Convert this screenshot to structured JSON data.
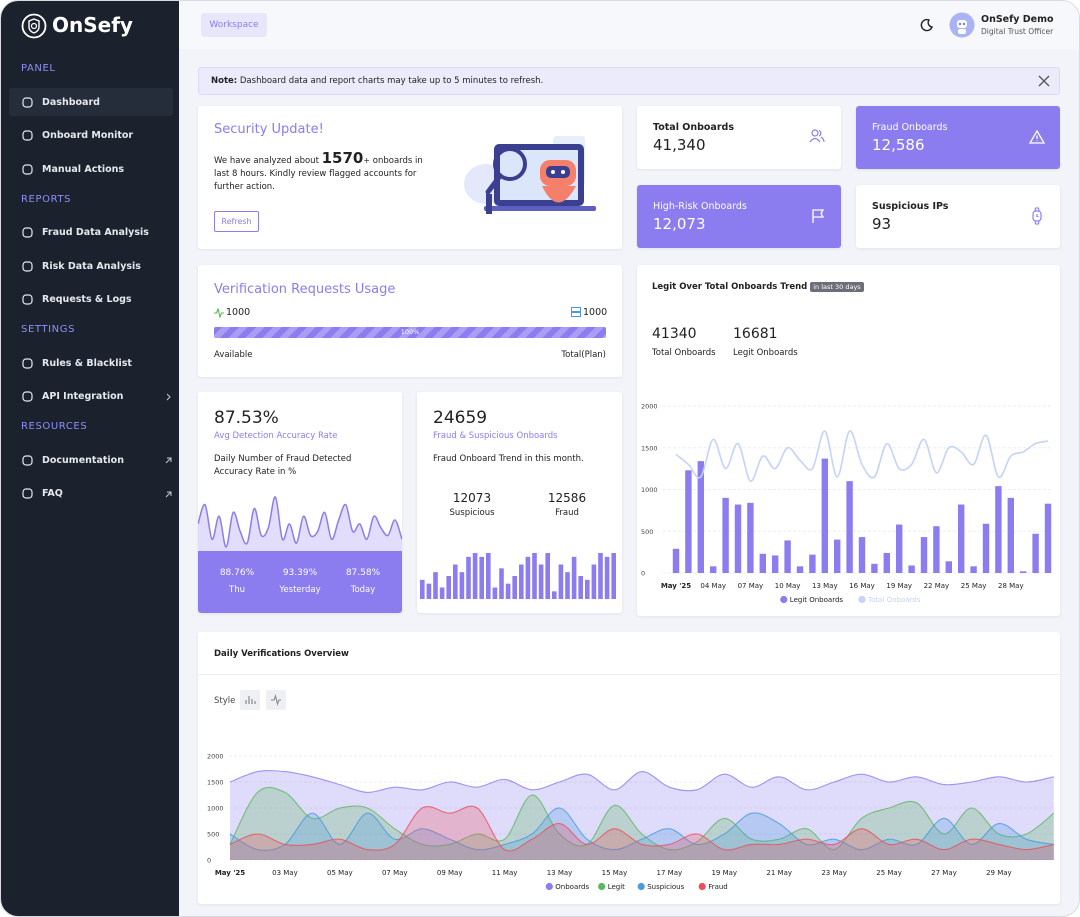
{
  "brand": "OnSefy",
  "sidebar": [
    {
      "heading": "PANEL",
      "items": [
        "Dashboard",
        "Onboard Monitor",
        "Manual Actions"
      ]
    },
    {
      "heading": "REPORTS",
      "items": [
        "Fraud Data Analysis",
        "Risk Data Analysis",
        "Requests & Logs"
      ]
    },
    {
      "heading": "SETTINGS",
      "items": [
        "Rules & Blacklist",
        "API Integration"
      ]
    },
    {
      "heading": "RESOURCES",
      "items": [
        "Documentation",
        "FAQ"
      ]
    }
  ],
  "topbar": {
    "workspace": "Workspace",
    "user_name": "OnSefy Demo",
    "user_role": "Digital Trust Officer"
  },
  "note": {
    "label": "Note:",
    "text": "Dashboard data and report charts may take up to 5 minutes to refresh."
  },
  "security": {
    "title": "Security Update!",
    "text_before": "We have analyzed about",
    "count": "1570",
    "count_suffix": "+",
    "text_after": "onboards in last 8 hours. Kindly review flagged accounts for further action.",
    "button": "Refresh"
  },
  "stats": [
    {
      "label": "Total Onboards",
      "value": "41,340"
    },
    {
      "label": "Fraud Onboards",
      "value": "12,586"
    },
    {
      "label": "High-Risk Onboards",
      "value": "12,073"
    },
    {
      "label": "Suspicious IPs",
      "value": "93"
    }
  ],
  "usage": {
    "title": "Verification Requests Usage",
    "used": 1000,
    "plan": 1000,
    "progress_label": "100%",
    "available": "Available",
    "total": "Total(Plan)"
  },
  "accuracy": {
    "value": "87.53%",
    "label": "Avg Detection Accuracy Rate",
    "description": "Daily Number of Fraud Detected Accuracy Rate in %",
    "sparkline": [
      60,
      85,
      40,
      70,
      30,
      75,
      50,
      35,
      80,
      45,
      55,
      95,
      40,
      60,
      35,
      70,
      45,
      50,
      75,
      40,
      65,
      85,
      50,
      60,
      40,
      70,
      55,
      45,
      65,
      40
    ],
    "days": [
      {
        "value": "88.76%",
        "label": "Thu"
      },
      {
        "value": "93.39%",
        "label": "Yesterday"
      },
      {
        "value": "87.58%",
        "label": "Today"
      }
    ]
  },
  "fraud": {
    "value": 24659,
    "label": "Fraud & Suspicious Onboards",
    "description": "Fraud Onboard Trend in this month.",
    "breakdown": [
      {
        "value": 12073,
        "label": "Suspicious"
      },
      {
        "value": 12586,
        "label": "Fraud"
      }
    ],
    "bars": [
      25,
      20,
      35,
      15,
      30,
      45,
      35,
      55,
      60,
      55,
      60,
      15,
      40,
      20,
      30,
      45,
      55,
      60,
      45,
      60,
      10,
      45,
      35,
      55,
      30,
      25,
      45,
      60,
      55,
      60
    ]
  },
  "trend_chart": {
    "type": "combo",
    "title": "Legit Over Total Onboards Trend",
    "badge": "in last 30 days",
    "summary": [
      {
        "value": 41340,
        "label": "Total Onboards"
      },
      {
        "value": 16681,
        "label": "Legit Onboards"
      }
    ],
    "categories": [
      "May '25",
      null,
      null,
      "04 May",
      null,
      null,
      "07 May",
      null,
      null,
      "10 May",
      null,
      null,
      "13 May",
      null,
      null,
      "16 May",
      null,
      null,
      "19 May",
      null,
      null,
      "22 May",
      null,
      null,
      "25 May",
      null,
      null,
      "28 May",
      null,
      null,
      null
    ],
    "ylim": [
      0,
      2000
    ],
    "yticks": [
      0,
      500,
      1000,
      1500,
      2000
    ],
    "grid": true,
    "series": [
      {
        "name": "Legit Onboards",
        "type": "bar",
        "color": "#8b7cf0",
        "values": [
          290,
          1230,
          1340,
          80,
          900,
          820,
          840,
          230,
          210,
          390,
          80,
          220,
          1370,
          400,
          1100,
          430,
          110,
          240,
          580,
          90,
          430,
          560,
          140,
          820,
          80,
          590,
          1040,
          900,
          20,
          470,
          830
        ]
      },
      {
        "name": "Total Onboards",
        "type": "line",
        "color": "#c3d4f7",
        "values": [
          1420,
          1300,
          1150,
          1600,
          1250,
          1550,
          1100,
          1400,
          1250,
          1500,
          1350,
          1250,
          1700,
          1150,
          1700,
          1300,
          1150,
          1550,
          1250,
          1300,
          1600,
          1200,
          1500,
          1450,
          1300,
          1650,
          1150,
          1400,
          1450,
          1550,
          1580
        ]
      }
    ]
  },
  "daily_chart": {
    "type": "area",
    "title": "Daily Verifications Overview",
    "style_label": "Style",
    "categories": [
      "May '25",
      null,
      "03 May",
      null,
      "05 May",
      null,
      "07 May",
      null,
      "09 May",
      null,
      "11 May",
      null,
      "13 May",
      null,
      "15 May",
      null,
      "17 May",
      null,
      "19 May",
      null,
      "21 May",
      null,
      "23 May",
      null,
      "25 May",
      null,
      "27 May",
      null,
      "29 May",
      null,
      null
    ],
    "ylim": [
      0,
      2000
    ],
    "yticks": [
      0,
      500,
      1000,
      1500,
      2000
    ],
    "grid": true,
    "series": [
      {
        "name": "Onboards",
        "color": "#8b7cf0",
        "values": [
          1500,
          1700,
          1700,
          1600,
          1450,
          1300,
          1400,
          1350,
          1500,
          1400,
          1550,
          1350,
          1500,
          1650,
          1350,
          1700,
          1400,
          1350,
          1650,
          1400,
          1600,
          1350,
          1500,
          1650,
          1500,
          1600,
          1450,
          1500,
          1600,
          1500,
          1600
        ]
      },
      {
        "name": "Legit",
        "color": "#5cb85c",
        "values": [
          300,
          1300,
          1300,
          800,
          1000,
          1000,
          600,
          300,
          300,
          500,
          400,
          1250,
          500,
          300,
          1050,
          500,
          200,
          350,
          800,
          400,
          400,
          600,
          200,
          800,
          1000,
          1100,
          500,
          1000,
          500,
          500,
          900
        ]
      },
      {
        "name": "Suspicious",
        "color": "#4a9ae0",
        "values": [
          500,
          200,
          300,
          900,
          300,
          900,
          400,
          600,
          400,
          200,
          300,
          500,
          1000,
          400,
          200,
          400,
          600,
          300,
          500,
          900,
          700,
          300,
          400,
          200,
          400,
          300,
          800,
          300,
          700,
          400,
          300
        ]
      },
      {
        "name": "Fraud",
        "color": "#e8505b",
        "values": [
          300,
          500,
          300,
          300,
          400,
          200,
          300,
          1000,
          900,
          1000,
          200,
          400,
          700,
          300,
          600,
          300,
          300,
          500,
          200,
          300,
          300,
          400,
          300,
          600,
          300,
          400,
          200,
          400,
          300,
          200,
          300
        ]
      }
    ]
  }
}
